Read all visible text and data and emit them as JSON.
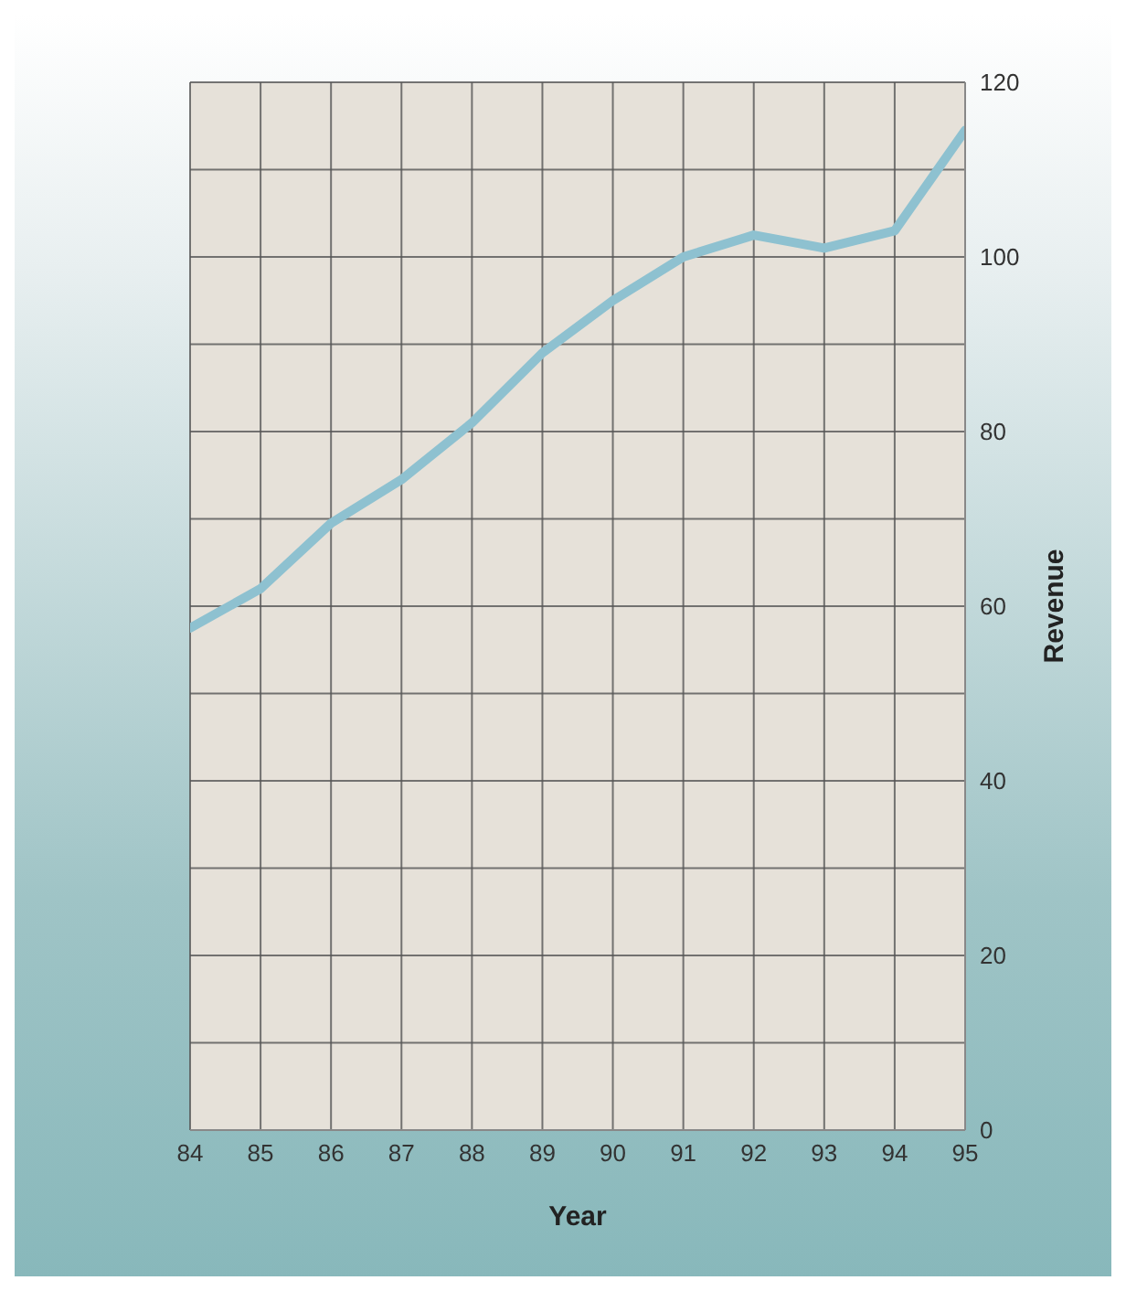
{
  "chart_data": {
    "type": "line",
    "xlabel": "Year",
    "ylabel": "Revenue",
    "x": [
      84,
      85,
      86,
      87,
      88,
      89,
      90,
      91,
      92,
      93,
      94,
      95
    ],
    "series": [
      {
        "color": "#8ec1d0",
        "values": [
          57.5,
          62,
          69.5,
          74.5,
          81,
          89,
          95,
          100,
          102.5,
          101,
          103,
          114.5
        ]
      }
    ],
    "xlim": [
      84,
      95
    ],
    "xticks": [
      84,
      85,
      86,
      87,
      88,
      89,
      90,
      91,
      92,
      93,
      94,
      95
    ],
    "ylim": [
      0,
      120
    ],
    "yticks": [
      0,
      {
        "value": 10,
        "label": null
      },
      20,
      {
        "value": 30,
        "label": null
      },
      40,
      {
        "value": 50,
        "label": null
      },
      60,
      {
        "value": 70,
        "label": null
      },
      80,
      {
        "value": 90,
        "label": null
      },
      100,
      {
        "value": 110,
        "label": null
      },
      120
    ],
    "grid": true,
    "marker": "none",
    "line_style": "solid"
  }
}
